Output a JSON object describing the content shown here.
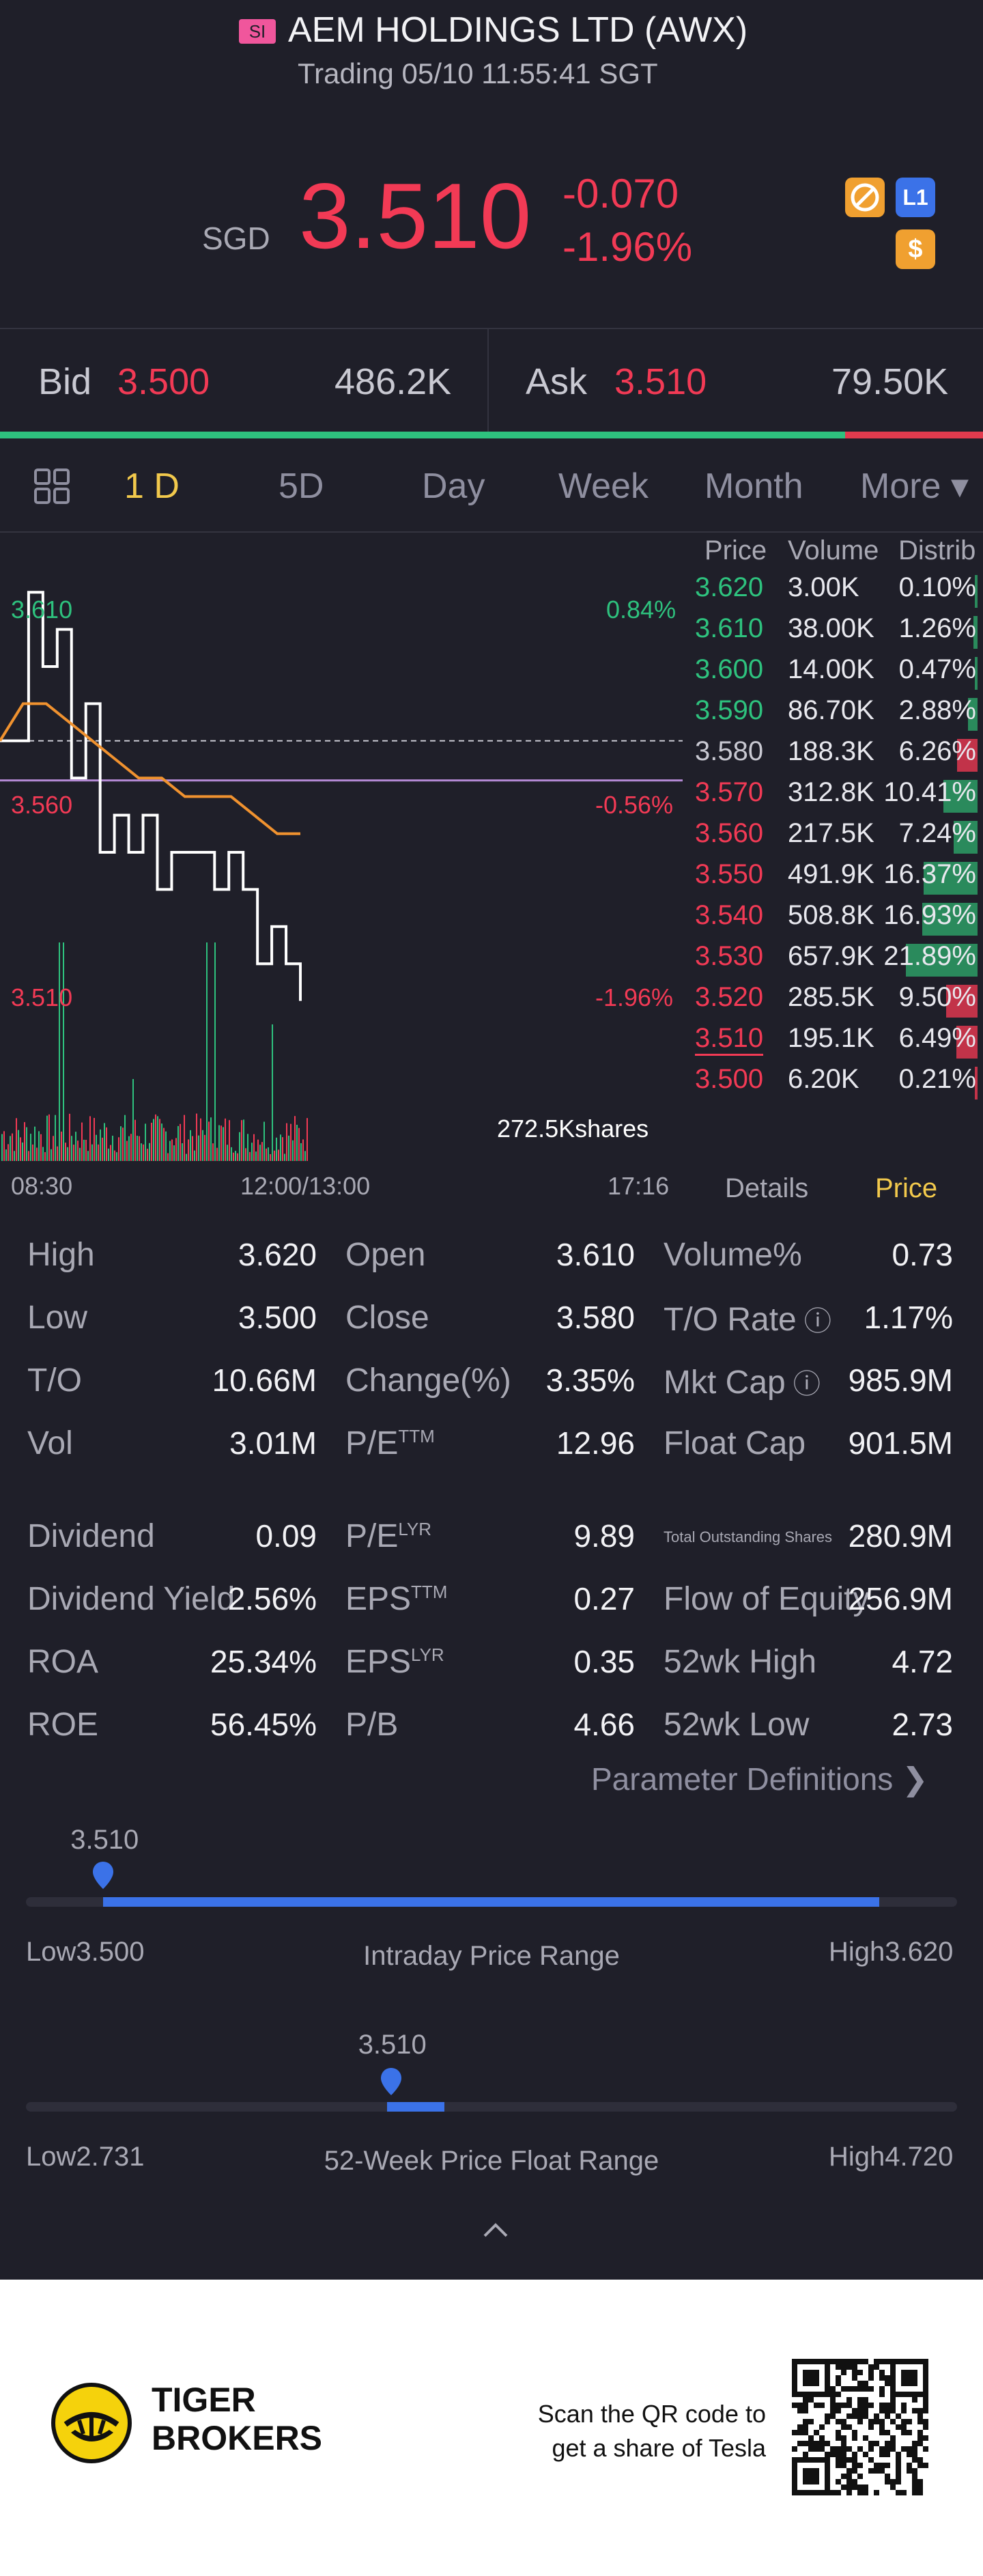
{
  "header": {
    "exchange_badge": "SI",
    "stock_name": "AEM HOLDINGS LTD (AWX)",
    "trading_status": "Trading 05/10 11:55:41 SGT",
    "currency": "SGD",
    "last_price": "3.510",
    "change": "-0.070",
    "change_pct": "-1.96%",
    "icons": [
      "no-trading-icon",
      "level1-icon",
      "dollar-icon"
    ],
    "level_icon_text": "L1",
    "dollar_icon_text": "$"
  },
  "bid_ask": {
    "bid_label": "Bid",
    "bid_price": "3.500",
    "bid_volume": "486.2K",
    "ask_label": "Ask",
    "ask_price": "3.510",
    "ask_volume": "79.50K",
    "bid_share": 0.86
  },
  "tabs": [
    {
      "label": "1 D",
      "active": true
    },
    {
      "label": "5D"
    },
    {
      "label": "Day"
    },
    {
      "label": "Week"
    },
    {
      "label": "Month"
    },
    {
      "label": "More ▾"
    }
  ],
  "chart": {
    "price_labels": [
      "3.610",
      "3.560",
      "3.510"
    ],
    "pct_labels": [
      "0.84%",
      "-0.56%",
      "-1.96%"
    ],
    "volume_label": "272.5Kshares",
    "time_labels": [
      "08:30",
      "12:00/13:00",
      "17:16"
    ],
    "panel_tabs": [
      "Details",
      "Price"
    ],
    "active_panel": "Price"
  },
  "chart_data": {
    "type": "line",
    "series": [
      {
        "values": [
          3.58,
          3.58,
          3.62,
          3.6,
          3.61,
          3.57,
          3.59,
          3.55,
          3.56,
          3.55,
          3.56,
          3.54,
          3.55,
          3.55,
          3.55,
          3.54,
          3.55,
          3.54,
          3.52,
          3.53,
          3.52,
          3.51
        ]
      },
      {
        "values": [
          3.58,
          3.59,
          3.59,
          3.585,
          3.58,
          3.575,
          3.57,
          3.57,
          3.565,
          3.565,
          3.565,
          3.56,
          3.555,
          3.555
        ]
      }
    ],
    "ylim": [
      3.5,
      3.625
    ],
    "prev_close": 3.58
  },
  "order_book": {
    "headers": [
      "Price",
      "Volume",
      "Distrib"
    ],
    "rows": [
      {
        "price": "3.620",
        "volume": "3.00K",
        "dist": "0.10%",
        "side": "buy",
        "frac": 0.001
      },
      {
        "price": "3.610",
        "volume": "38.00K",
        "dist": "1.26%",
        "side": "buy",
        "frac": 0.0126
      },
      {
        "price": "3.600",
        "volume": "14.00K",
        "dist": "0.47%",
        "side": "buy",
        "frac": 0.0047
      },
      {
        "price": "3.590",
        "volume": "86.70K",
        "dist": "2.88%",
        "side": "buy",
        "frac": 0.0288
      },
      {
        "price": "3.580",
        "volume": "188.3K",
        "dist": "6.26%",
        "side": "neutral",
        "frac": 0.0626
      },
      {
        "price": "3.570",
        "volume": "312.8K",
        "dist": "10.41%",
        "side": "sell",
        "frac": 0.1041
      },
      {
        "price": "3.560",
        "volume": "217.5K",
        "dist": "7.24%",
        "side": "sell",
        "frac": 0.0724
      },
      {
        "price": "3.550",
        "volume": "491.9K",
        "dist": "16.37%",
        "side": "sell",
        "frac": 0.1637
      },
      {
        "price": "3.540",
        "volume": "508.8K",
        "dist": "16.93%",
        "side": "sell",
        "frac": 0.1693
      },
      {
        "price": "3.530",
        "volume": "657.9K",
        "dist": "21.89%",
        "side": "sell",
        "frac": 0.2189
      },
      {
        "price": "3.520",
        "volume": "285.5K",
        "dist": "9.50%",
        "side": "sell",
        "frac": 0.095
      },
      {
        "price": "3.510",
        "volume": "195.1K",
        "dist": "6.49%",
        "side": "sell",
        "frac": 0.0649,
        "current": true
      },
      {
        "price": "3.500",
        "volume": "6.20K",
        "dist": "0.21%",
        "side": "sell",
        "frac": 0.0021
      }
    ]
  },
  "stats": {
    "col1": [
      {
        "label": "High",
        "value": "3.620"
      },
      {
        "label": "Low",
        "value": "3.500"
      },
      {
        "label": "T/O",
        "value": "10.66M"
      },
      {
        "label": "Vol",
        "value": "3.01M"
      },
      {
        "label": "Dividend",
        "value": "0.09"
      },
      {
        "label": "Dividend Yield",
        "value": "2.56%"
      },
      {
        "label": "ROA",
        "value": "25.34%"
      },
      {
        "label": "ROE",
        "value": "56.45%"
      }
    ],
    "col2": [
      {
        "label": "Open",
        "value": "3.610"
      },
      {
        "label": "Close",
        "value": "3.580"
      },
      {
        "label": "Change(%)",
        "value": "3.35%"
      },
      {
        "label": "P/E",
        "sup": "TTM",
        "value": "12.96"
      },
      {
        "label": "P/E",
        "sup": "LYR",
        "value": "9.89"
      },
      {
        "label": "EPS",
        "sup": "TTM",
        "value": "0.27"
      },
      {
        "label": "EPS",
        "sup": "LYR",
        "value": "0.35"
      },
      {
        "label": "P/B",
        "value": "4.66"
      }
    ],
    "col3": [
      {
        "label": "Volume%",
        "value": "0.73"
      },
      {
        "label": "T/O Rate",
        "value": "1.17%"
      },
      {
        "label": "Mkt Cap",
        "value": "985.9M"
      },
      {
        "label": "Float Cap",
        "value": "901.5M"
      },
      {
        "label": "Total Outstanding Shares",
        "value": "280.9M"
      },
      {
        "label": "Flow of Equity",
        "value": "256.9M"
      },
      {
        "label": "52wk High",
        "value": "4.72"
      },
      {
        "label": "52wk Low",
        "value": "2.73"
      }
    ],
    "parameter_link": "Parameter Definitions"
  },
  "ranges": {
    "intraday": {
      "current": "3.510",
      "low": "Low3.500",
      "high": "High3.620",
      "title": "Intraday Price Range",
      "position": 0.083
    },
    "week52": {
      "current": "3.510",
      "low": "Low2.731",
      "high": "High4.720",
      "title": "52-Week Price Float Range",
      "position": 0.392
    }
  },
  "footer": {
    "brand_line1": "TIGER",
    "brand_line2": "BROKERS",
    "scan_line1": "Scan the QR code to",
    "scan_line2": "get a share of Tesla"
  },
  "colors": {
    "up": "#2ec27e",
    "down": "#f23a55",
    "accent": "#f2c94c",
    "range": "#3b72e8"
  }
}
